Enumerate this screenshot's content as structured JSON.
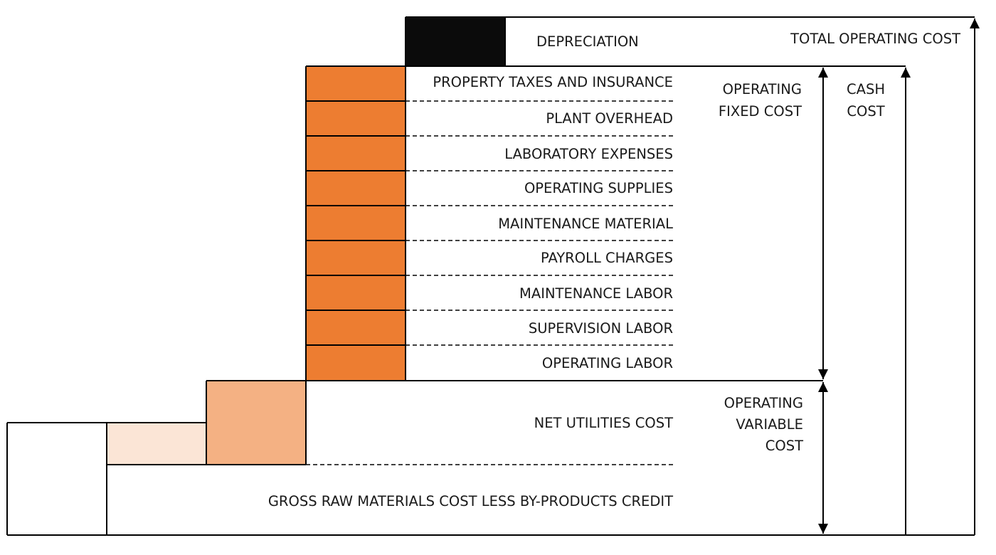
{
  "labels": {
    "depreciation": "DEPRECIATION",
    "total_operating_cost": "TOTAL OPERATING COST",
    "property_taxes_and_insurance": "PROPERTY TAXES AND INSURANCE",
    "plant_overhead": "PLANT OVERHEAD",
    "laboratory_expenses": "LABORATORY EXPENSES",
    "operating_supplies": "OPERATING SUPPLIES",
    "maintenance_material": "MAINTENANCE MATERIAL",
    "payroll_charges": "PAYROLL CHARGES",
    "maintenance_labor": "MAINTENANCE LABOR",
    "supervision_labor": "SUPERVISION LABOR",
    "operating_labor": "OPERATING LABOR",
    "net_utilities_cost": "NET UTILITIES COST",
    "gross_raw_materials": "GROSS RAW MATERIALS COST LESS BY-PRODUCTS CREDIT",
    "operating_fixed_cost_1": "OPERATING",
    "operating_fixed_cost_2": "FIXED COST",
    "cash_cost_1": "CASH",
    "cash_cost_2": "COST",
    "operating_variable_cost_1": "OPERATING",
    "operating_variable_cost_2": "VARIABLE",
    "operating_variable_cost_3": "COST"
  },
  "colors": {
    "depreciation": "#0b0b0b",
    "fixed_cost": "#ed7d31",
    "utilities": "#f4b183",
    "raw_materials_light": "#fbe5d6",
    "outline": "#000000"
  }
}
